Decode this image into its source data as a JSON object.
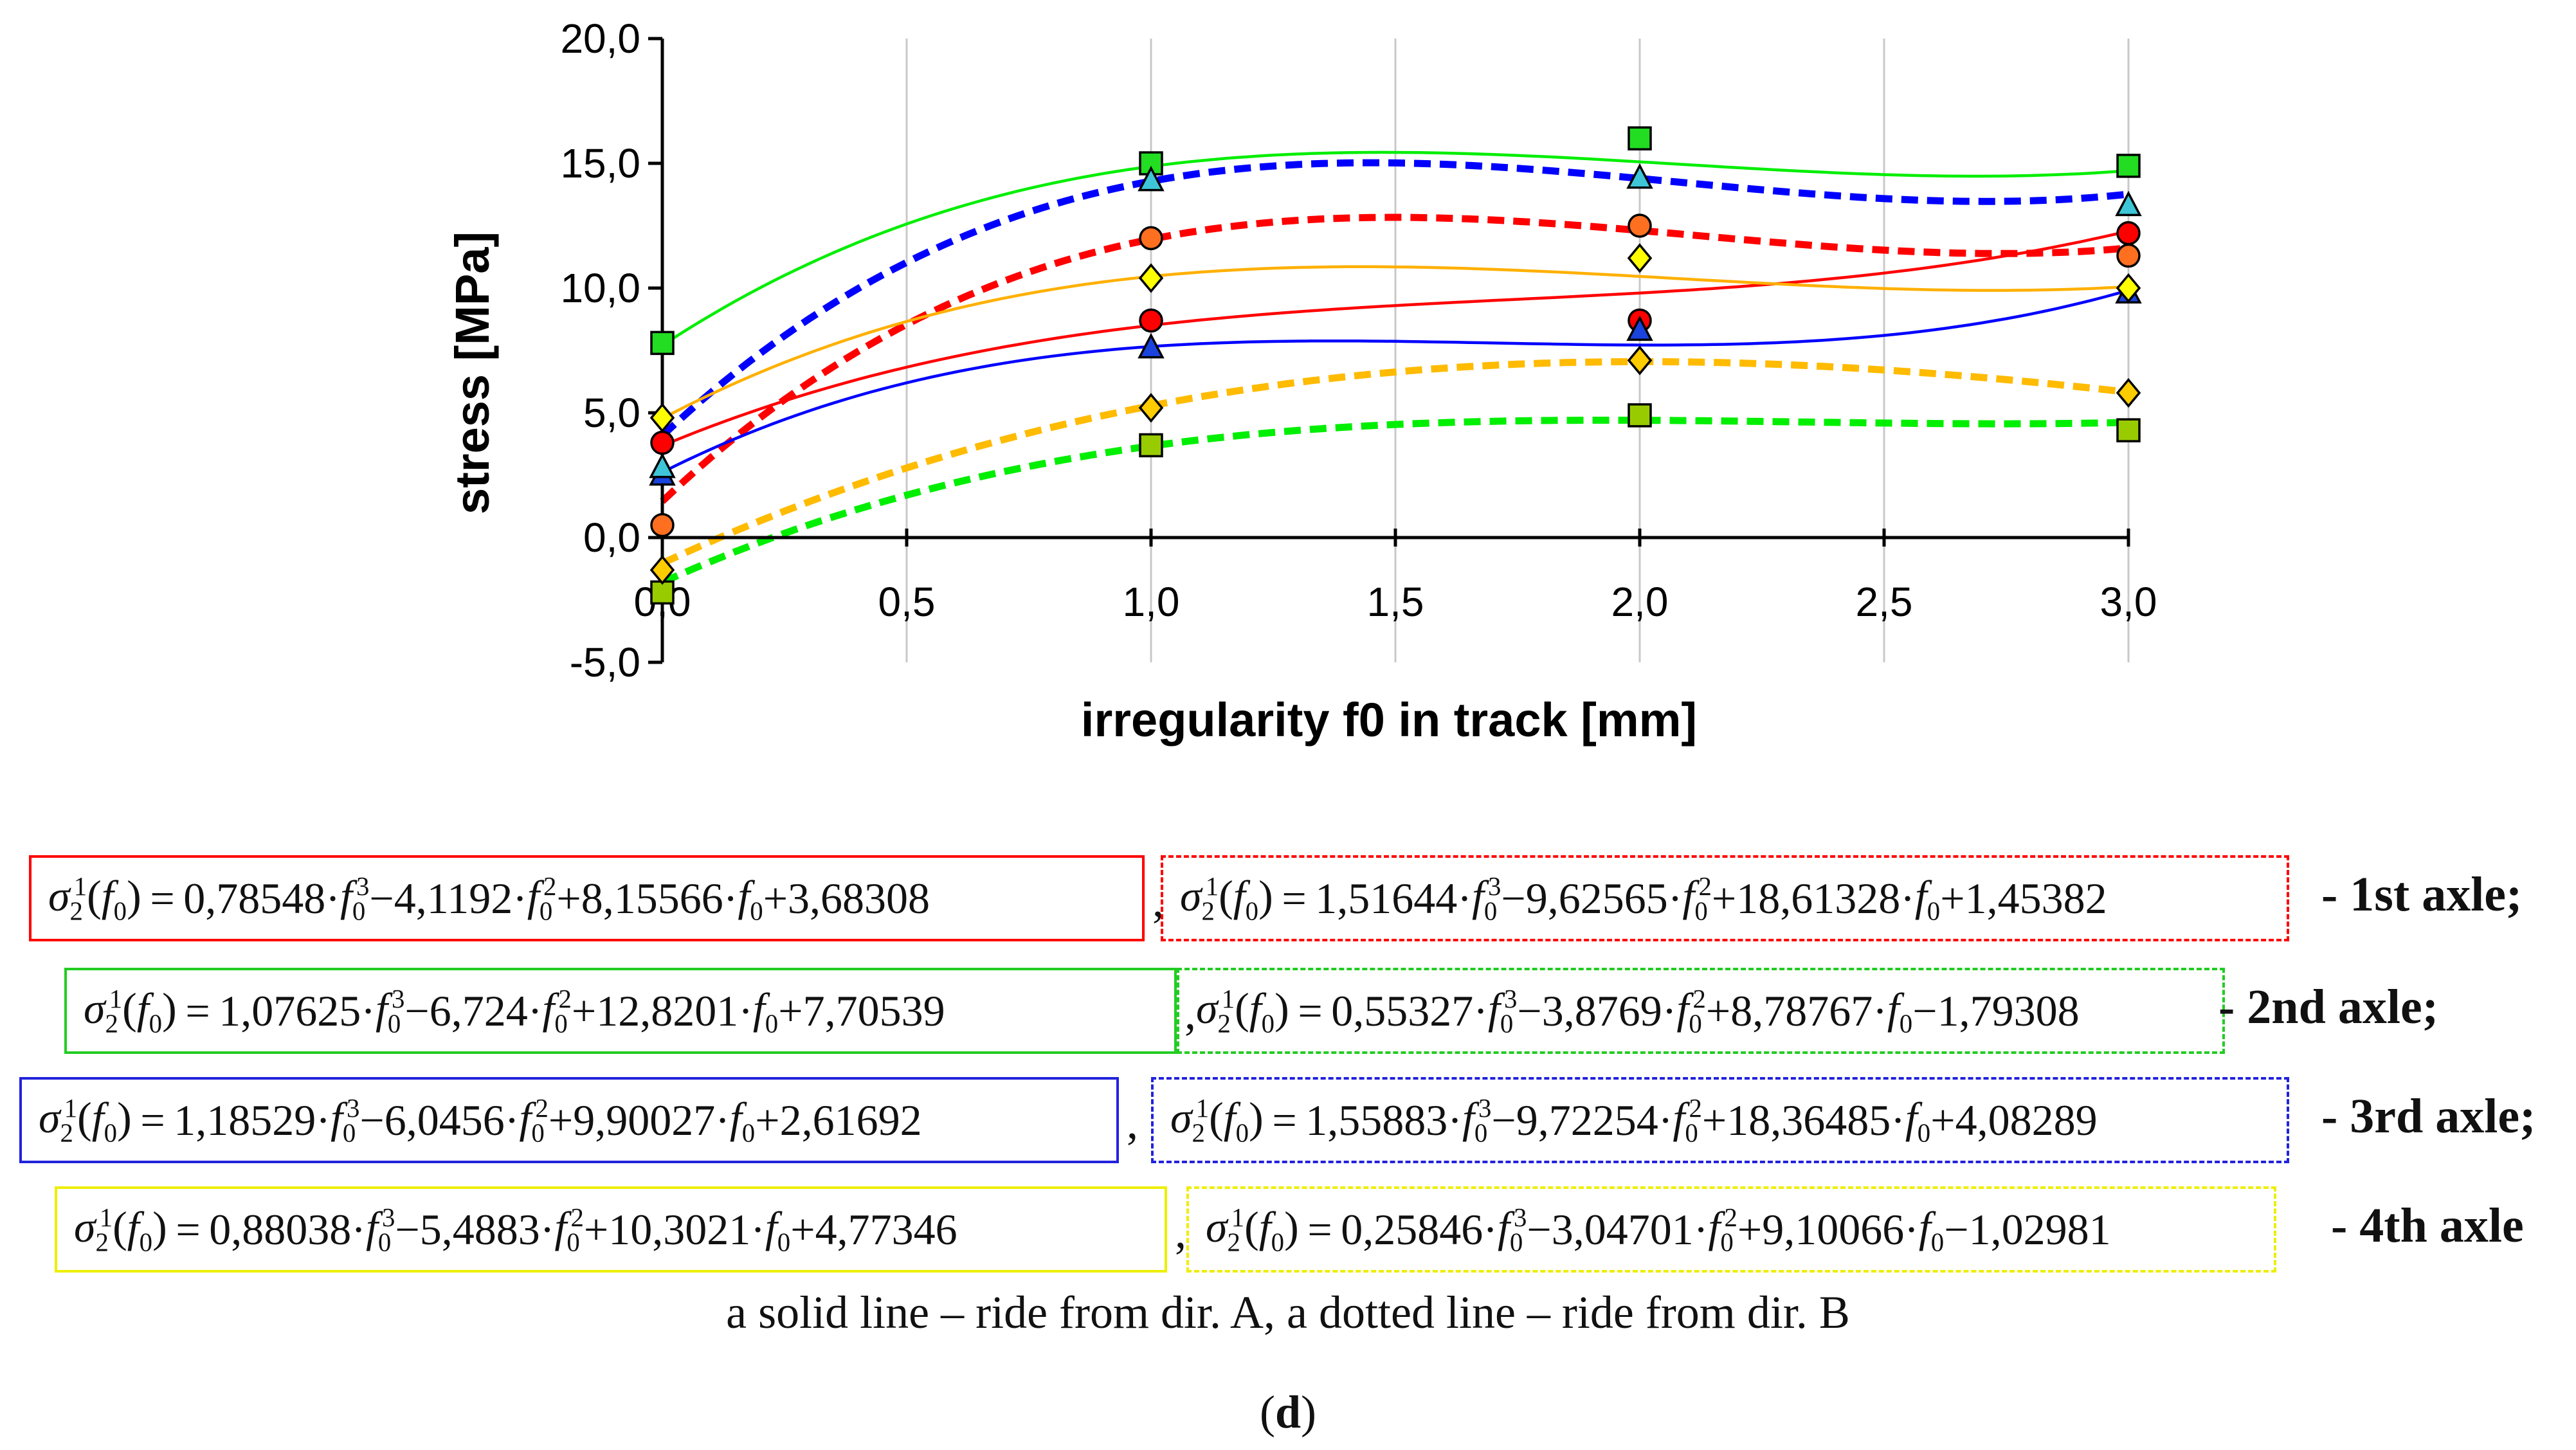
{
  "chart_data": {
    "type": "line",
    "xlabel": "irregularity f0 in track [mm]",
    "ylabel": "stress [MPa]",
    "xlim": [
      0,
      3
    ],
    "ylim": [
      -5,
      20
    ],
    "x_ticks": [
      0,
      0.5,
      1,
      1.5,
      2,
      2.5,
      3
    ],
    "x_tick_labels": [
      "0,0",
      "0,5",
      "1,0",
      "1,5",
      "2,0",
      "2,5",
      "3,0"
    ],
    "y_ticks": [
      -5,
      0,
      5,
      10,
      15,
      20
    ],
    "y_tick_labels": [
      "-5,0",
      "0,0",
      "5,0",
      "10,0",
      "15,0",
      "20,0"
    ],
    "grid": "vertical",
    "series": [
      {
        "name": "1st axle - dir. A",
        "style": "solid",
        "color": "#ff0000",
        "marker": "circle",
        "marker_color": "#ff0000",
        "coef": [
          0.78548,
          -4.1192,
          8.15566,
          3.68308
        ],
        "markers": [
          {
            "x": 0,
            "y": 3.8
          },
          {
            "x": 1,
            "y": 8.7
          },
          {
            "x": 2,
            "y": 8.7
          },
          {
            "x": 3,
            "y": 12.2
          }
        ]
      },
      {
        "name": "1st axle - dir. B",
        "style": "dotted",
        "color": "#ff0000",
        "marker": "circle",
        "marker_color": "#ff6f20",
        "coef": [
          1.51644,
          -9.62565,
          18.61328,
          1.45382
        ],
        "markers": [
          {
            "x": 0,
            "y": 0.5
          },
          {
            "x": 1,
            "y": 12.0
          },
          {
            "x": 2,
            "y": 12.5
          },
          {
            "x": 3,
            "y": 11.3
          }
        ]
      },
      {
        "name": "2nd axle - dir. A",
        "style": "solid",
        "color": "#00ee00",
        "marker": "square",
        "marker_color": "#22dd22",
        "coef": [
          1.07625,
          -6.724,
          12.8201,
          7.70539
        ],
        "markers": [
          {
            "x": 0,
            "y": 7.8
          },
          {
            "x": 1,
            "y": 15.0
          },
          {
            "x": 2,
            "y": 16.0
          },
          {
            "x": 3,
            "y": 14.9
          }
        ]
      },
      {
        "name": "2nd axle - dir. B",
        "style": "dotted",
        "color": "#00ee00",
        "marker": "square",
        "marker_color": "#99cc00",
        "coef": [
          0.55327,
          -3.8769,
          8.78767,
          -1.79308
        ],
        "markers": [
          {
            "x": 0,
            "y": -2.2
          },
          {
            "x": 1,
            "y": 3.7
          },
          {
            "x": 2,
            "y": 4.9
          },
          {
            "x": 3,
            "y": 4.3
          }
        ]
      },
      {
        "name": "3rd axle - dir. A",
        "style": "solid",
        "color": "#0000ff",
        "marker": "triangle",
        "marker_color": "#1a44dd",
        "coef": [
          1.18529,
          -6.0456,
          9.90027,
          2.61692
        ],
        "markers": [
          {
            "x": 0,
            "y": 2.5
          },
          {
            "x": 1,
            "y": 7.6
          },
          {
            "x": 2,
            "y": 8.3
          },
          {
            "x": 3,
            "y": 9.8
          }
        ]
      },
      {
        "name": "3rd axle - dir. B",
        "style": "dotted",
        "color": "#0000ff",
        "marker": "triangle",
        "marker_color": "#3ec6d8",
        "coef": [
          1.55883,
          -9.72254,
          18.36485,
          4.08289
        ],
        "markers": [
          {
            "x": 0,
            "y": 2.8
          },
          {
            "x": 1,
            "y": 14.3
          },
          {
            "x": 2,
            "y": 14.4
          },
          {
            "x": 3,
            "y": 13.3
          }
        ]
      },
      {
        "name": "4th axle - dir. A",
        "style": "solid",
        "color": "#ffb000",
        "marker": "diamond",
        "marker_color": "#ffff00",
        "coef": [
          0.88038,
          -5.4883,
          10.3021,
          4.77346
        ],
        "markers": [
          {
            "x": 0,
            "y": 4.8
          },
          {
            "x": 1,
            "y": 10.4
          },
          {
            "x": 2,
            "y": 11.2
          },
          {
            "x": 3,
            "y": 10.0
          }
        ]
      },
      {
        "name": "4th axle - dir. B",
        "style": "dotted",
        "color": "#ffbb00",
        "marker": "diamond",
        "marker_color": "#ffcc00",
        "coef": [
          0.25846,
          -3.04701,
          9.10066,
          -1.02981
        ],
        "markers": [
          {
            "x": 0,
            "y": -1.3
          },
          {
            "x": 1,
            "y": 5.2
          },
          {
            "x": 2,
            "y": 7.1
          },
          {
            "x": 3,
            "y": 5.8
          }
        ]
      }
    ]
  },
  "equations": [
    {
      "label": "- 1st axle;",
      "color": "#ff0000",
      "solid": {
        "c3": "0,78548",
        "op2": "−",
        "c2": "4,1192",
        "op1": "+",
        "c1": "8,15566",
        "op0": "+",
        "c0": "3,68308"
      },
      "dotted": {
        "c3": "1,51644",
        "op2": "−",
        "c2": "9,62565",
        "op1": "+",
        "c1": "18,61328",
        "op0": "+",
        "c0": "1,45382"
      }
    },
    {
      "label": "- 2nd axle;",
      "color": "#22cc22",
      "solid": {
        "c3": "1,07625",
        "op2": "−",
        "c2": "6,724",
        "op1": "+",
        "c1": "12,8201",
        "op0": "+",
        "c0": "7,70539"
      },
      "dotted": {
        "c3": "0,55327",
        "op2": "−",
        "c2": "3,8769",
        "op1": "+",
        "c1": "8,78767",
        "op0": "−",
        "c0": "1,79308"
      }
    },
    {
      "label": "- 3rd axle;",
      "color": "#2222dd",
      "solid": {
        "c3": "1,18529",
        "op2": "−",
        "c2": "6,0456",
        "op1": "+",
        "c1": "9,90027",
        "op0": "+",
        "c0": "2,61692"
      },
      "dotted": {
        "c3": "1,55883",
        "op2": "−",
        "c2": "9,72254",
        "op1": "+",
        "c1": "18,36485",
        "op0": "+",
        "c0": "4,08289"
      }
    },
    {
      "label": "- 4th axle",
      "color": "#eeee00",
      "solid": {
        "c3": "0,88038",
        "op2": "−",
        "c2": "5,4883",
        "op1": "+",
        "c1": "10,3021",
        "op0": "+",
        "c0": "4,77346"
      },
      "dotted": {
        "c3": "0,25846",
        "op2": "−",
        "c2": "3,04701",
        "op1": "+",
        "c1": "9,10066",
        "op0": "−",
        "c0": "1,02981"
      }
    }
  ],
  "note": "a solid line – ride from dir. A, a dotted line – ride from dir. B",
  "panel_label": "d"
}
